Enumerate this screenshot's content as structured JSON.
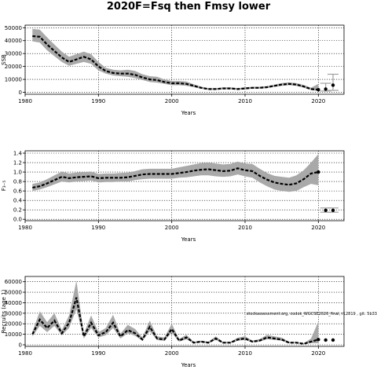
{
  "title": "2020F=Fsq then Fmsy lower",
  "note": "stockassessment.org, codok_WGCSE2020_final, r12819 , git: 5b33",
  "chart_data": [
    {
      "type": "line",
      "ylabel": "SSB",
      "xlabel": "Years",
      "xlim": [
        1980,
        2023.5
      ],
      "ylim": [
        -1500,
        52000
      ],
      "xticks": [
        1980,
        1990,
        2000,
        2010,
        2020
      ],
      "yticks": [
        0,
        10000,
        20000,
        30000,
        40000,
        50000
      ],
      "grid": true,
      "series": [
        {
          "x": [
            1981,
            1982,
            1983,
            1984,
            1985,
            1986,
            1987,
            1988,
            1989,
            1990,
            1991,
            1992,
            1993,
            1994,
            1995,
            1996,
            1997,
            1998,
            1999,
            2000,
            2001,
            2002,
            2003,
            2004,
            2005,
            2006,
            2007,
            2008,
            2009,
            2010,
            2011,
            2012,
            2013,
            2014,
            2015,
            2016,
            2017,
            2018,
            2019,
            2020
          ],
          "y": [
            43500,
            43000,
            37000,
            32000,
            27000,
            23500,
            25500,
            27500,
            25500,
            20000,
            16500,
            15000,
            14500,
            14500,
            13500,
            11500,
            10000,
            9500,
            8000,
            7000,
            7000,
            6500,
            5000,
            3500,
            2500,
            2500,
            3000,
            3000,
            2500,
            3000,
            3500,
            3500,
            4000,
            5000,
            6000,
            6500,
            6000,
            4500,
            2500,
            2000
          ],
          "lower": [
            39500,
            38500,
            32500,
            28000,
            23500,
            20500,
            22000,
            23500,
            22000,
            17000,
            14500,
            13000,
            12500,
            12000,
            11000,
            9500,
            8000,
            7500,
            6500,
            5500,
            5500,
            5000,
            4000,
            2800,
            1900,
            1900,
            2400,
            2400,
            2000,
            2400,
            2800,
            2900,
            3300,
            4200,
            5000,
            5500,
            5000,
            3600,
            1800,
            1000
          ],
          "upper": [
            49000,
            48500,
            42500,
            37000,
            31500,
            27500,
            29500,
            31500,
            29500,
            23500,
            19000,
            17500,
            17000,
            17500,
            16500,
            14000,
            12500,
            12000,
            10000,
            8800,
            8800,
            8300,
            6300,
            4400,
            3200,
            3200,
            3800,
            3800,
            3200,
            3800,
            4300,
            4300,
            4800,
            6000,
            7200,
            7700,
            7200,
            5600,
            3500,
            6500
          ],
          "forecast": [
            {
              "x": 2021,
              "y": 2500,
              "lo": 1000,
              "hi": 7000
            },
            {
              "x": 2022,
              "y": 5500,
              "lo": 1500,
              "hi": 14000
            }
          ]
        }
      ]
    },
    {
      "type": "line",
      "ylabel": "F₃₋₅",
      "xlabel": "Years",
      "xlim": [
        1980,
        2023.5
      ],
      "ylim": [
        -0.03,
        1.45
      ],
      "xticks": [
        1980,
        1990,
        2000,
        2010,
        2020
      ],
      "yticks": [
        0.0,
        0.2,
        0.4,
        0.6,
        0.8,
        1.0,
        1.2,
        1.4
      ],
      "ytick_labels": [
        "0.0",
        "0.2",
        "0.4",
        "0.6",
        "0.8",
        "1.0",
        "1.2",
        "1.4"
      ],
      "grid": true,
      "series": [
        {
          "x": [
            1981,
            1982,
            1983,
            1984,
            1985,
            1986,
            1987,
            1988,
            1989,
            1990,
            1991,
            1992,
            1993,
            1994,
            1995,
            1996,
            1997,
            1998,
            1999,
            2000,
            2001,
            2002,
            2003,
            2004,
            2005,
            2006,
            2007,
            2008,
            2009,
            2010,
            2011,
            2012,
            2013,
            2014,
            2015,
            2016,
            2017,
            2018,
            2019,
            2020
          ],
          "y": [
            0.67,
            0.7,
            0.76,
            0.83,
            0.9,
            0.87,
            0.89,
            0.9,
            0.91,
            0.87,
            0.88,
            0.88,
            0.88,
            0.89,
            0.92,
            0.95,
            0.96,
            0.96,
            0.96,
            0.96,
            0.98,
            1.0,
            1.03,
            1.05,
            1.06,
            1.04,
            1.02,
            1.03,
            1.08,
            1.04,
            1.02,
            0.92,
            0.84,
            0.78,
            0.75,
            0.73,
            0.76,
            0.85,
            0.97,
            1.0
          ],
          "lower": [
            0.6,
            0.63,
            0.68,
            0.74,
            0.8,
            0.78,
            0.8,
            0.81,
            0.82,
            0.78,
            0.79,
            0.79,
            0.8,
            0.8,
            0.83,
            0.85,
            0.86,
            0.86,
            0.86,
            0.86,
            0.88,
            0.89,
            0.91,
            0.93,
            0.93,
            0.91,
            0.9,
            0.91,
            0.95,
            0.91,
            0.88,
            0.78,
            0.7,
            0.63,
            0.6,
            0.58,
            0.6,
            0.68,
            0.75,
            0.72
          ],
          "upper": [
            0.75,
            0.78,
            0.85,
            0.93,
            1.01,
            0.97,
            0.99,
            1.0,
            1.01,
            0.96,
            0.97,
            0.97,
            0.98,
            0.99,
            1.02,
            1.06,
            1.07,
            1.07,
            1.07,
            1.07,
            1.1,
            1.13,
            1.16,
            1.19,
            1.2,
            1.18,
            1.16,
            1.17,
            1.22,
            1.18,
            1.17,
            1.07,
            0.98,
            0.92,
            0.9,
            0.88,
            0.93,
            1.04,
            1.2,
            1.38
          ],
          "forecast": [
            {
              "x": 2021,
              "y": 0.19,
              "lo": 0.15,
              "hi": 0.24
            },
            {
              "x": 2022,
              "y": 0.19,
              "lo": 0.15,
              "hi": 0.24
            }
          ]
        }
      ]
    },
    {
      "type": "line",
      "ylabel": "Recruits (age 1)",
      "xlabel": "Years",
      "xlim": [
        1980,
        2023.5
      ],
      "ylim": [
        -1500,
        65000
      ],
      "xticks": [
        1980,
        1990,
        2000,
        2010,
        2020
      ],
      "yticks": [
        0,
        10000,
        20000,
        30000,
        40000,
        50000,
        60000
      ],
      "grid": true,
      "series": [
        {
          "x": [
            1981,
            1982,
            1983,
            1984,
            1985,
            1986,
            1987,
            1988,
            1989,
            1990,
            1991,
            1992,
            1993,
            1994,
            1995,
            1996,
            1997,
            1998,
            1999,
            2000,
            2001,
            2002,
            2003,
            2004,
            2005,
            2006,
            2007,
            2008,
            2009,
            2010,
            2011,
            2012,
            2013,
            2014,
            2015,
            2016,
            2017,
            2018,
            2019,
            2020
          ],
          "y": [
            10000,
            24000,
            16000,
            23000,
            11000,
            21000,
            45000,
            8000,
            21000,
            9000,
            12000,
            21000,
            8000,
            14000,
            11000,
            5000,
            17000,
            6000,
            5000,
            15000,
            4000,
            7000,
            2000,
            3000,
            2000,
            6000,
            2000,
            2000,
            5000,
            6000,
            3000,
            4000,
            7000,
            6000,
            5000,
            2000,
            2000,
            1000,
            3000,
            5000
          ],
          "lower": [
            8000,
            18000,
            12000,
            18000,
            9000,
            16000,
            34000,
            6000,
            16000,
            7000,
            9000,
            16000,
            6000,
            11000,
            8500,
            3800,
            13000,
            4500,
            3800,
            11500,
            3000,
            5200,
            1400,
            2200,
            1400,
            4600,
            1400,
            1400,
            3800,
            4600,
            2200,
            3000,
            5300,
            4600,
            3800,
            1400,
            1400,
            700,
            1600,
            1500
          ],
          "upper": [
            12500,
            32000,
            21500,
            30000,
            14000,
            28000,
            61000,
            10500,
            28000,
            12000,
            16000,
            28500,
            10500,
            19000,
            15000,
            7000,
            23000,
            8000,
            7000,
            20000,
            5500,
            9500,
            2800,
            4000,
            2800,
            8000,
            2800,
            2800,
            6800,
            8000,
            4000,
            5400,
            9400,
            8000,
            6800,
            2800,
            2800,
            1400,
            6000,
            22000
          ],
          "forecast": [
            {
              "x": 2021,
              "y": 4500,
              "lo": 0,
              "hi": 0
            },
            {
              "x": 2022,
              "y": 4500,
              "lo": 0,
              "hi": 0
            }
          ]
        }
      ]
    }
  ]
}
